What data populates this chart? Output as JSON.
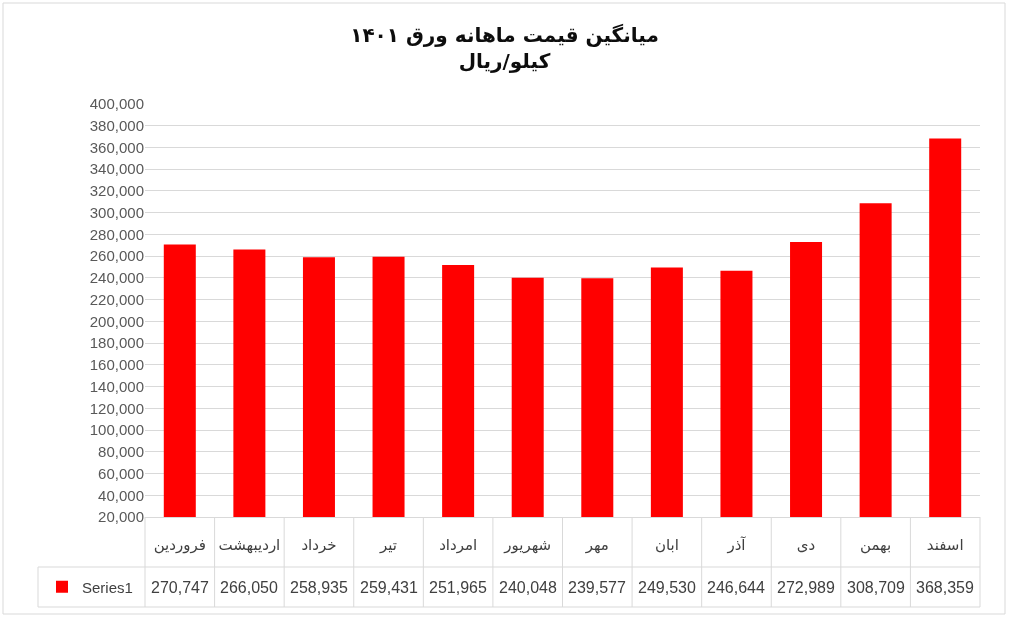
{
  "chart_data": {
    "type": "bar",
    "title": "میانگین قیمت ماهانه ورق ۱۴۰۱",
    "subtitle": "کیلو/ریال",
    "categories": [
      "فروردین",
      "اردیبهشت",
      "خرداد",
      "تیر",
      "امرداد",
      "شهریور",
      "مهر",
      "ابان",
      "آذر",
      "دی",
      "بهمن",
      "اسفند"
    ],
    "series": [
      {
        "name": "Series1",
        "color": "#ff0000",
        "values": [
          270747,
          266050,
          258935,
          259431,
          251965,
          240048,
          239577,
          249530,
          246644,
          272989,
          308709,
          368359
        ],
        "value_labels": [
          "270,747",
          "266,050",
          "258,935",
          "259,431",
          "251,965",
          "240,048",
          "239,577",
          "249,530",
          "246,644",
          "272,989",
          "308,709",
          "368,359"
        ]
      }
    ],
    "ylim": [
      20000,
      400000
    ],
    "yticks": [
      {
        "value": 20000,
        "label": "20,000"
      },
      {
        "value": 40000,
        "label": "40,000"
      },
      {
        "value": 60000,
        "label": "60,000"
      },
      {
        "value": 80000,
        "label": "80,000"
      },
      {
        "value": 100000,
        "label": "100,000"
      },
      {
        "value": 120000,
        "label": "120,000"
      },
      {
        "value": 140000,
        "label": "140,000"
      },
      {
        "value": 160000,
        "label": "160,000"
      },
      {
        "value": 180000,
        "label": "180,000"
      },
      {
        "value": 200000,
        "label": "200,000"
      },
      {
        "value": 220000,
        "label": "220,000"
      },
      {
        "value": 240000,
        "label": "240,000"
      },
      {
        "value": 260000,
        "label": "260,000"
      },
      {
        "value": 280000,
        "label": "280,000"
      },
      {
        "value": 300000,
        "label": "300,000"
      },
      {
        "value": 320000,
        "label": "320,000"
      },
      {
        "value": 340000,
        "label": "340,000"
      },
      {
        "value": 360000,
        "label": "360,000"
      },
      {
        "value": 380000,
        "label": "380,000"
      },
      {
        "value": 400000,
        "label": "400,000"
      }
    ],
    "grid": "y",
    "legend": "bottom left"
  }
}
